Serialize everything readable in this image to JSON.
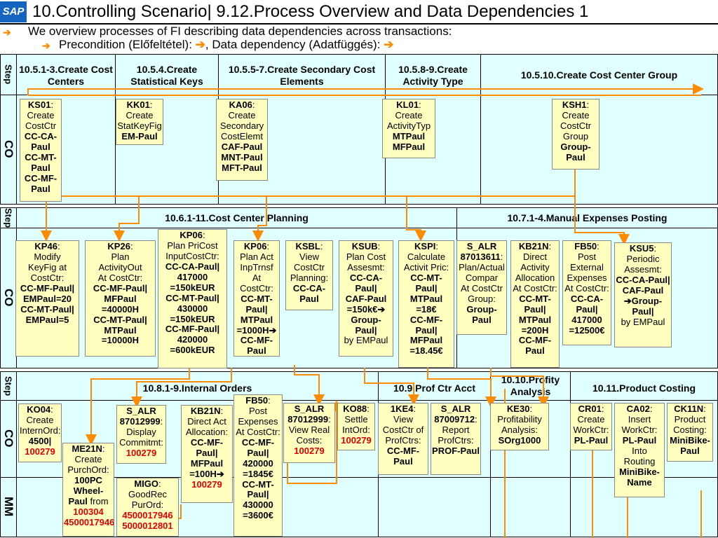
{
  "title": "10.Controlling Scenario| 9.12.Process Overview and Data Dependencies 1",
  "logo": "SAP",
  "intro": {
    "line1": "We overview processes of FI describing data dependencies across transactions:",
    "line2_a": "Precondition (Előfeltétel):",
    "line2_b": ", Data dependency (Adatfüggés):"
  },
  "row_labels": {
    "step": "Step",
    "co": "CO",
    "mm": "MM"
  },
  "section1": {
    "headers": [
      "10.5.1-3.Create Cost  Centers",
      "10.5.4.Create Statistical Keys",
      "10.5.5-7.Create Secondary Cost Elements",
      "10.5.8-9.Create Activity Type",
      "10.5.10.Create Cost Center Group"
    ],
    "boxes": [
      {
        "code": "KS01",
        "lines": [
          "Create",
          "CostCtr"
        ],
        "bold": [
          "CC-CA-Paul",
          "CC-MT-Paul",
          "CC-MF-Paul"
        ]
      },
      {
        "code": "KK01",
        "lines": [
          "Create",
          "StatKeyFig"
        ],
        "bold": [
          "EM-Paul"
        ]
      },
      {
        "code": "KA06",
        "lines": [
          "Create",
          "Secondary",
          "CostElemt"
        ],
        "bold": [
          "CAF-Paul",
          "MNT-Paul",
          "MFT-Paul"
        ]
      },
      {
        "code": "KL01",
        "lines": [
          "Create",
          "ActivityTyp"
        ],
        "bold": [
          "MTPaul",
          "MFPaul"
        ]
      },
      {
        "code": "KSH1",
        "lines": [
          "Create",
          "CostCtr",
          "Group"
        ],
        "bold": [
          "Group-Paul"
        ]
      }
    ]
  },
  "section2": {
    "headers": [
      "10.6.1-11.Cost Center Planning",
      "10.7.1-4.Manual Expenses Posting"
    ],
    "boxes": [
      {
        "code": "KP46",
        "lines": [
          "Modify",
          "KeyFig at",
          "CostCtr:"
        ],
        "bold": [
          "CC-MF-Paul|",
          "EMPaul=20",
          "CC-MT-Paul|",
          "EMPaul=5"
        ]
      },
      {
        "code": "KP26",
        "lines": [
          "Plan",
          "ActivityOut",
          "At CostCtr:"
        ],
        "bold": [
          "CC-MF-Paul|",
          "MFPaul",
          "=40000H",
          "CC-MT-Paul|",
          "MTPaul",
          "=10000H"
        ]
      },
      {
        "code": "KP06",
        "lines": [
          "Plan PriCost",
          "InputCostCtr:"
        ],
        "bold": [
          "CC-CA-Paul|",
          "417000",
          "=150kEUR",
          "CC-MT-Paul|",
          "430000",
          "=150kEUR",
          "CC-MF-Paul|",
          "420000",
          "=600kEUR"
        ]
      },
      {
        "code": "KP06",
        "lines": [
          "Plan Act",
          "InpTrnsf",
          "At CostCtr:"
        ],
        "bold": [
          "CC-MT-Paul|",
          "MTPaul",
          "=1000H➔",
          "CC-MF-Paul"
        ]
      },
      {
        "code": "KSBL",
        "lines": [
          "View",
          "CostCtr",
          "Planning:"
        ],
        "bold": [
          "CC-CA-Paul"
        ]
      },
      {
        "code": "KSUB",
        "lines": [
          "Plan Cost",
          "Assesmt:"
        ],
        "bold": [
          "CC-CA-Paul|",
          "CAF-Paul",
          "=150k€➔",
          "Group-Paul|"
        ],
        "tail": "by EMPaul"
      },
      {
        "code": "KSPI",
        "lines": [
          "Calculate",
          "Activit Pric:"
        ],
        "bold": [
          "CC-MT-Paul|",
          "MTPaul",
          "=18€",
          "CC-MF-Paul|",
          "MFPaul",
          "=18.45€"
        ]
      },
      {
        "code": "S_ALR 87013611",
        "lines": [
          "Plan/Actual",
          "Compar",
          "At CostCtr",
          "Group:"
        ],
        "bold": [
          "Group-Paul"
        ]
      },
      {
        "code": "KB21N",
        "lines": [
          "Direct",
          "Activity",
          "Allocation",
          "At CostCtr:"
        ],
        "bold": [
          "CC-MT-Paul|",
          "MTPaul",
          "=200H",
          "CC-MF-Paul"
        ]
      },
      {
        "code": "FB50",
        "lines": [
          "Post",
          "External",
          "Expenses",
          "At CostCtr:"
        ],
        "bold": [
          "CC-CA-Paul|",
          "417000",
          "=12500€"
        ]
      },
      {
        "code": "KSU5",
        "lines": [
          "Periodic",
          "Assesmt:"
        ],
        "bold": [
          "CC-CA-Paul|",
          "CAF-Paul",
          "➔Group-Paul|"
        ],
        "tail": "by EMPaul"
      }
    ]
  },
  "section3": {
    "headers": [
      "10.8.1-9.Internal Orders",
      "10.9.Prof Ctr Acct",
      "10.10.Profity Analysis",
      "10.11.Product Costing"
    ],
    "boxes": [
      {
        "code": "KO04",
        "lines": [
          "Create",
          "InternOrd:"
        ],
        "bold": [
          "4500|"
        ],
        "red": [
          "100279"
        ]
      },
      {
        "code": "ME21N",
        "lines": [
          "Create",
          "PurchOrd:"
        ],
        "bold": [
          "100PC Wheel-Paul"
        ],
        "tail": "from",
        "red": [
          "100304",
          "4500017946"
        ]
      },
      {
        "code": "S_ALR 87012999",
        "lines": [
          "Display",
          "Commitmt:"
        ],
        "red": [
          "100279"
        ]
      },
      {
        "code": "MIGO",
        "lines": [
          "GoodRec",
          "PurOrd:"
        ],
        "red": [
          "4500017946",
          "5000012801"
        ]
      },
      {
        "code": "KB21N",
        "lines": [
          "Direct Act",
          "Allocation:"
        ],
        "bold": [
          "CC-MF-Paul|",
          "MFPaul",
          "=100H➔"
        ],
        "red": [
          "100279"
        ]
      },
      {
        "code": "FB50",
        "lines": [
          "Post",
          "Expenses",
          "At CostCtr:"
        ],
        "bold": [
          "CC-MF-Paul|",
          "420000",
          "=1845€",
          "CC-MT-Paul|",
          "430000",
          "=3600€"
        ]
      },
      {
        "code": "S_ALR 87012999",
        "lines": [
          "View Real",
          "Costs:"
        ],
        "red": [
          "100279"
        ]
      },
      {
        "code": "KO88",
        "lines": [
          "Settle",
          "IntOrd:"
        ],
        "red": [
          "100279"
        ]
      },
      {
        "code": "1KE4",
        "lines": [
          "View",
          "CostCtr of",
          "ProfCtrs:"
        ],
        "bold": [
          "CC-MF-Paul"
        ]
      },
      {
        "code": "S_ALR 87009712",
        "lines": [
          "Report",
          "ProfCtrs:"
        ],
        "bold": [
          "PROF-Paul"
        ]
      },
      {
        "code": "KE30",
        "lines": [
          "Profitability",
          "Analysis:"
        ],
        "bold": [
          "SOrg1000"
        ]
      },
      {
        "code": "CR01",
        "lines": [
          "Create",
          "WorkCtr:"
        ],
        "bold": [
          "PL-Paul"
        ]
      },
      {
        "code": "CA02",
        "lines": [
          "Insert",
          "WorkCtr:"
        ],
        "bold": [
          "PL-Paul"
        ],
        "lines2": [
          "Into",
          "Routing"
        ],
        "bold2": [
          "MiniBike-Name"
        ]
      },
      {
        "code": "CK11N",
        "lines": [
          "Product",
          "Costing:"
        ],
        "bold": [
          "MiniBike-Paul"
        ]
      }
    ]
  },
  "colors": {
    "band": "#e0ffff",
    "box": "#ffffc0",
    "arrow": "#ff8c00",
    "red_text": "#e00000"
  }
}
